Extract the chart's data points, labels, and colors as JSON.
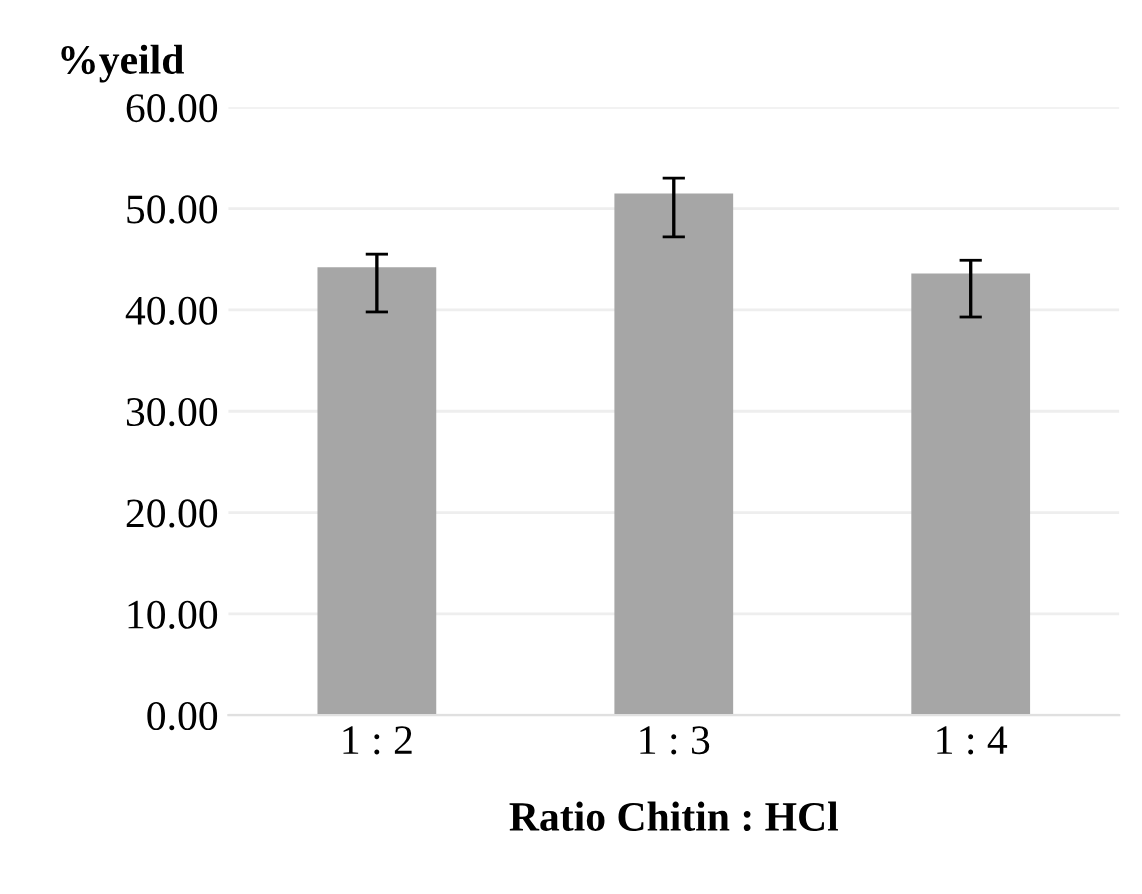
{
  "chart_data": {
    "type": "bar",
    "xlabel": "Ratio Chitin : HCl",
    "ylabel": "%yeild",
    "categories": [
      "1 : 2",
      "1 : 3",
      "1 : 4"
    ],
    "values": [
      44.2,
      51.5,
      43.6
    ],
    "errors": [
      [
        39.8,
        45.5
      ],
      [
        47.2,
        53.0
      ],
      [
        39.3,
        44.9
      ]
    ],
    "color": "#a6a6a6",
    "ylim": [
      0,
      60
    ],
    "yticks": [
      {
        "value": 0,
        "label": "0.00"
      },
      {
        "value": 10,
        "label": "10.00"
      },
      {
        "value": 20,
        "label": "20.00"
      },
      {
        "value": 30,
        "label": "30.00"
      },
      {
        "value": 40,
        "label": "40.00"
      },
      {
        "value": 50,
        "label": "50.00"
      },
      {
        "value": 60,
        "label": "60.00"
      }
    ],
    "grid": "y"
  }
}
